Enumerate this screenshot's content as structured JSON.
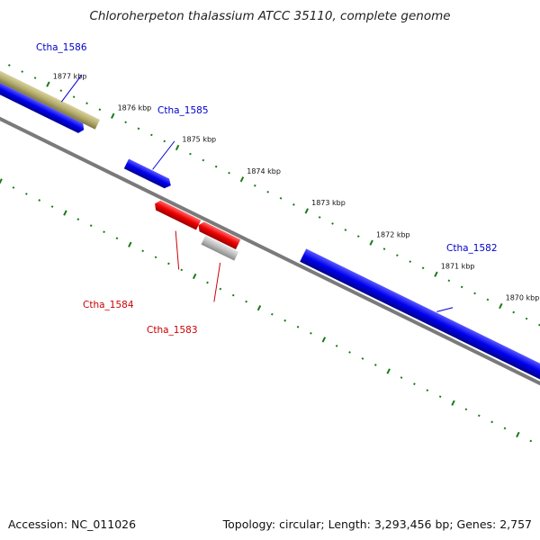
{
  "title": "Chloroherpeton thalassium ATCC 35110, complete genome",
  "accession_text": "Accession: NC_011026",
  "summary_text": "Topology: circular; Length: 3,293,456 bp; Genes: 2,757",
  "colors": {
    "forward_gene": "#0000ee",
    "reverse_gene": "#ee0000",
    "pseudo_gene": "#bbbbbb",
    "highlight_gene": "#b5ad6e",
    "tick": "#1a7a1a",
    "backbone": "#808080",
    "label_forward": "#0000cc",
    "label_reverse": "#cc0000"
  },
  "scale_labels": [
    "1877 kbp",
    "1876 kbp",
    "1875 kbp",
    "1874 kbp",
    "1873 kbp",
    "1872 kbp",
    "1871 kbp",
    "1870 kbp"
  ],
  "genes": [
    {
      "label": "Ctha_1586",
      "type": "highlight"
    },
    {
      "label": "",
      "type": "forward"
    },
    {
      "label": "Ctha_1585",
      "type": "forward"
    },
    {
      "label": "Ctha_1584",
      "type": "reverse"
    },
    {
      "label": "Ctha_1583",
      "type": "pseudo"
    },
    {
      "label": "Ctha_1582",
      "type": "forward"
    }
  ]
}
